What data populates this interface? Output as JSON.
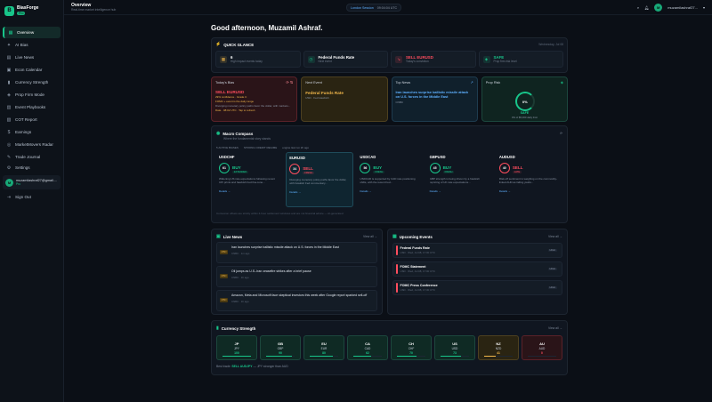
{
  "brand": {
    "name": "BiasForge",
    "tag": "Pro"
  },
  "nav": [
    {
      "label": "Overview",
      "icon": "grid-icon",
      "active": true
    },
    {
      "label": "AI Bias",
      "icon": "sparkle-icon"
    },
    {
      "label": "Live News",
      "icon": "news-icon"
    },
    {
      "label": "Econ Calendar",
      "icon": "calendar-icon"
    },
    {
      "label": "Currency Strength",
      "icon": "bars-icon"
    },
    {
      "label": "Prop Firm Mode",
      "icon": "shield-icon"
    },
    {
      "label": "Event Playbooks",
      "icon": "book-icon"
    },
    {
      "label": "COT Report",
      "icon": "chart-icon"
    },
    {
      "label": "Earnings",
      "icon": "dollar-icon"
    },
    {
      "label": "MarketMovers Radar",
      "icon": "radar-icon"
    },
    {
      "label": "Trade Journal",
      "icon": "journal-icon"
    }
  ],
  "settings_label": "Settings",
  "user": {
    "email": "muzamilashraf27@gmail....",
    "plan": "Pro",
    "initials": "M"
  },
  "signout_label": "Sign Out",
  "topbar": {
    "title": "Overview",
    "subtitle": "Real-time market intelligence hub",
    "session": "London Session",
    "time": "09:04:04 UTC",
    "user_short": "muzamilashraf27..."
  },
  "greeting": "Good afternoon, Muzamil Ashraf.",
  "quick": {
    "title": "QUICK GLANCE",
    "updated": "Wednesday, Jul 08",
    "cards": [
      {
        "main": "6",
        "sub": "High impact events today",
        "color": "#f2b84b"
      },
      {
        "main": "Federal Funds Rate",
        "sub": "Next event",
        "color": "#18c58a"
      },
      {
        "main": "SELL EURUSD",
        "sub": "Today's conviction",
        "color": "#ff4d5e"
      },
      {
        "main": "SAFE",
        "sub": "Prop firm risk level",
        "color": "#18c58a"
      }
    ]
  },
  "bias_card": {
    "title": "Today's Bias",
    "signal": "SELL EURUSD",
    "confidence": "29% confidence · Grade C",
    "warning": "FOMC + event is the daily range",
    "text": "Diverging monetary policy paths favor the dollar, with markets...",
    "footer": "Date · 08:02 UTC · Tap to refresh"
  },
  "next_event": {
    "title": "Next Event",
    "name": "Federal Funds Rate",
    "meta": "USD · Fed Hawkish"
  },
  "top_news": {
    "title": "Top News",
    "headline": "Iran launches surprise ballistic missile attack on U.S. forces in the Middle East",
    "meta": "CNBC"
  },
  "prop_risk": {
    "title": "Prop Risk",
    "pct": "0%",
    "level": "SAFE",
    "note": "0% of $5,000 daily limit"
  },
  "macro": {
    "title": "Macro Compass",
    "subtitle": "Where the fundamental story stands",
    "tags": [
      "5 ACTIVE BIASES",
      "STRONG CREDIT REGIME",
      "engine last run 2h ago"
    ],
    "pairs": [
      {
        "name": "USDCHF",
        "score": "61",
        "bias": "BUY",
        "tag": "EXTENDED",
        "text": "Widening US rate expectations following recent CPI prints and hawkish Fed fine-tune...",
        "link": "Details →"
      },
      {
        "name": "EURUSD",
        "score": "34",
        "bias": "SELL",
        "tag": "FRESH",
        "text": "Diverging monetary policy paths favor the dollar, with hawkish Fed commentary...",
        "link": "Details →"
      },
      {
        "name": "USDCAD",
        "score": "56",
        "bias": "BUY",
        "tag": "FRESH",
        "text": "USDCAD is supported by CAD rate positioning shifts, with the recent Fed...",
        "link": "Details →"
      },
      {
        "name": "GBPUSD",
        "score": "45",
        "bias": "BUY",
        "tag": "FRESH",
        "text": "GBP strength is being driven by a hawkish repricing of UK rate expectations...",
        "link": "Details →"
      },
      {
        "name": "AUDUSD",
        "score": "40",
        "bias": "SELL",
        "tag": "LATE",
        "text": "Risk-off sentiment is weighing on the commodity-linked AUD as falling yields...",
        "link": "Details →"
      }
    ],
    "footer": "Convexion offsets are strictly within 4-hour settlement windows and are not financial advice — AI-generated"
  },
  "news": {
    "title": "Live News",
    "view_all": "View all →",
    "items": [
      {
        "src": "MSN",
        "title": "Iran launches surprise ballistic missile attack on U.S. forces in the Middle East",
        "meta": "CNBC · 1m ago"
      },
      {
        "src": "MSN",
        "title": "Oil jumps as U.S.-Iran ceasefire strikes after a brief pause",
        "meta": "CNBC · 1h ago"
      },
      {
        "src": "MSN",
        "title": "Amazon, Meta and Microsoft face skeptical investors this week after Google report sparked sell-off",
        "meta": "CNBC · 1h ago"
      }
    ]
  },
  "events": {
    "title": "Upcoming Events",
    "view_all": "View all →",
    "items": [
      {
        "title": "Federal Funds Rate",
        "meta": "USD · Wed, Jul 08, 17:00 UTC",
        "badge": "HIGH"
      },
      {
        "title": "FOMC Statement",
        "meta": "USD · Wed, Jul 08, 17:00 UTC",
        "badge": "HIGH"
      },
      {
        "title": "FOMC Press Conference",
        "meta": "USD · Wed, Jul 08, 17:30 UTC",
        "badge": "HIGH"
      }
    ]
  },
  "strength": {
    "title": "Currency Strength",
    "view_all": "View all →",
    "currencies": [
      {
        "code": "JP",
        "ccy": "JPY",
        "value": "100",
        "color": "#18c58a",
        "pct": 1.0
      },
      {
        "code": "GB",
        "ccy": "GBP",
        "value": "90",
        "color": "#18c58a",
        "pct": 0.9
      },
      {
        "code": "EU",
        "ccy": "EUR",
        "value": "80",
        "color": "#18c58a",
        "pct": 0.8
      },
      {
        "code": "CA",
        "ccy": "CAD",
        "value": "62",
        "color": "#18c58a",
        "pct": 0.62
      },
      {
        "code": "CH",
        "ccy": "CHF",
        "value": "70",
        "color": "#18c58a",
        "pct": 0.7
      },
      {
        "code": "US",
        "ccy": "USD",
        "value": "73",
        "color": "#18c58a",
        "pct": 0.73
      },
      {
        "code": "NZ",
        "ccy": "NZD",
        "value": "41",
        "color": "#f2b84b",
        "pct": 0.41
      },
      {
        "code": "AU",
        "ccy": "AUD",
        "value": "0",
        "color": "#ff4d5e",
        "pct": 0.0
      }
    ],
    "best_label": "Best trade:",
    "best_pair": "SELL AUDJPY",
    "best_note": "— JPY stronger than AUD"
  }
}
